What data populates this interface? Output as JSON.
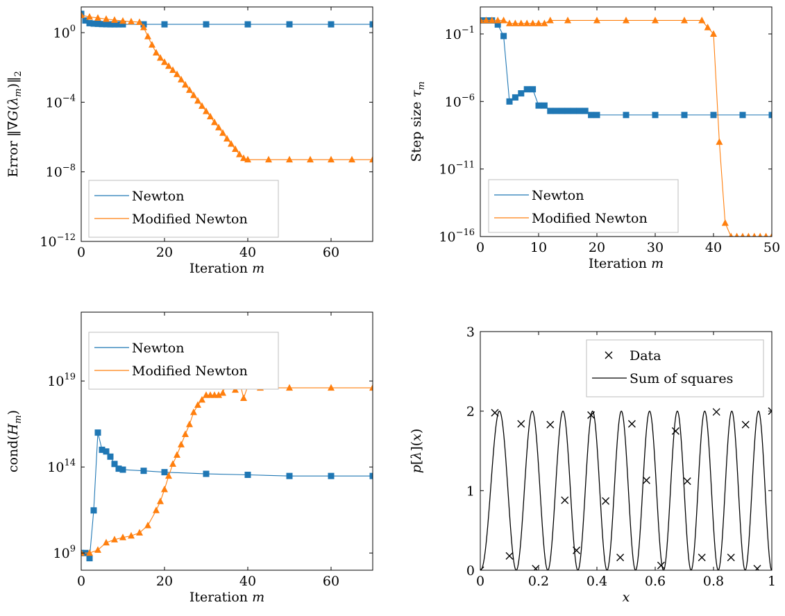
{
  "colors": {
    "newton": "#1f77b4",
    "modified_newton": "#ff7f0e",
    "sum_of_squares": "#000000",
    "data": "#000000"
  },
  "chart_data": [
    {
      "type": "line",
      "xlabel": "Iteration m",
      "ylabel": "Error ‖∇G(λm)‖2",
      "yscale": "log",
      "xlim": [
        0,
        70
      ],
      "ylim": [
        1e-12,
        30
      ],
      "xticks": [
        0,
        20,
        40,
        60
      ],
      "yticks": [
        1,
        0.0001,
        1e-08,
        1e-12
      ],
      "ytick_labels": [
        "10^0",
        "10^-4",
        "10^-8",
        "10^-12"
      ],
      "legend": "bottom-left",
      "series": [
        {
          "name": "Newton",
          "marker": "square",
          "x": [
            0,
            1,
            2,
            3,
            4,
            5,
            6,
            7,
            8,
            9,
            10,
            15,
            20,
            30,
            40,
            50,
            60,
            70
          ],
          "y": [
            12,
            5,
            3.5,
            3.3,
            3.2,
            3.1,
            3.05,
            3.0,
            3.0,
            3.0,
            3.0,
            3.0,
            3.0,
            3.0,
            3.0,
            3.0,
            3.0,
            3.0
          ]
        },
        {
          "name": "Modified Newton",
          "marker": "triangle",
          "x": [
            0,
            2,
            4,
            6,
            8,
            10,
            12,
            14,
            15,
            16,
            17,
            18,
            19,
            20,
            21,
            22,
            23,
            24,
            25,
            26,
            27,
            28,
            29,
            30,
            31,
            32,
            33,
            34,
            35,
            36,
            37,
            38,
            39,
            40,
            45,
            50,
            55,
            60,
            65,
            70
          ],
          "y": [
            10,
            8,
            7,
            6,
            5.3,
            4.7,
            4.3,
            4,
            2,
            0.6,
            0.2,
            0.07,
            0.035,
            0.02,
            0.012,
            0.007,
            0.004,
            0.002,
            0.001,
            0.0005,
            0.00025,
            0.00012,
            6e-05,
            3e-05,
            1.5e-05,
            7e-06,
            3.5e-06,
            1.7e-06,
            8e-07,
            4e-07,
            2e-07,
            1e-07,
            6e-08,
            5e-08,
            5e-08,
            5e-08,
            5e-08,
            5e-08,
            5e-08,
            5e-08
          ]
        }
      ]
    },
    {
      "type": "line",
      "xlabel": "Iteration m",
      "ylabel": "Step size τm",
      "yscale": "log",
      "xlim": [
        0,
        50
      ],
      "ylim": [
        1e-16,
        10
      ],
      "xticks": [
        0,
        10,
        20,
        30,
        40,
        50
      ],
      "yticks": [
        0.1,
        1e-06,
        1e-11,
        1e-16
      ],
      "ytick_labels": [
        "10^-1",
        "10^-6",
        "10^-11",
        "10^-16"
      ],
      "legend": "bottom-left",
      "series": [
        {
          "name": "Newton",
          "marker": "square",
          "x": [
            0,
            1,
            2,
            3,
            4,
            5,
            6,
            7,
            8,
            9,
            10,
            11,
            12,
            13,
            14,
            15,
            16,
            17,
            18,
            19,
            20,
            25,
            30,
            35,
            40,
            45,
            50
          ],
          "y": [
            1,
            1,
            1,
            0.5,
            0.07,
            1e-06,
            2e-06,
            4e-06,
            8e-06,
            8e-06,
            5e-07,
            5e-07,
            2e-07,
            2e-07,
            2e-07,
            2e-07,
            2e-07,
            2e-07,
            2e-07,
            1e-07,
            1e-07,
            1e-07,
            1e-07,
            1e-07,
            1e-07,
            1e-07,
            1e-07
          ]
        },
        {
          "name": "Modified Newton",
          "marker": "triangle",
          "x": [
            0,
            1,
            2,
            3,
            4,
            5,
            6,
            7,
            8,
            9,
            10,
            11,
            12,
            15,
            20,
            25,
            30,
            35,
            38,
            39,
            40,
            41,
            42,
            43,
            44,
            45,
            46,
            47,
            48,
            49,
            50
          ],
          "y": [
            1,
            1,
            1,
            1,
            1,
            0.6,
            0.6,
            0.6,
            0.6,
            0.6,
            0.6,
            0.6,
            1,
            1,
            1,
            1,
            1,
            1,
            1,
            0.3,
            0.1,
            1e-09,
            1e-15,
            1e-16,
            1e-16,
            1e-16,
            1e-16,
            1e-16,
            1e-16,
            1e-16,
            1e-16
          ]
        }
      ]
    },
    {
      "type": "line",
      "xlabel": "Iteration m",
      "ylabel": "cond(Hm)",
      "yscale": "log",
      "xlim": [
        0,
        70
      ],
      "ylim": [
        100000000.0,
        1e+23
      ],
      "xticks": [
        0,
        20,
        40,
        60
      ],
      "yticks": [
        1000000000.0,
        100000000000000.0,
        1e+19
      ],
      "ytick_labels": [
        "10^9",
        "10^14",
        "10^19"
      ],
      "legend": "top-left",
      "series": [
        {
          "name": "Newton",
          "marker": "square",
          "x": [
            0,
            1,
            2,
            3,
            4,
            5,
            6,
            7,
            8,
            9,
            10,
            15,
            20,
            30,
            40,
            50,
            60,
            70
          ],
          "y": [
            1000000000.0,
            1000000000.0,
            500000000.0,
            300000000000.0,
            1e+16,
            1000000000000000.0,
            800000000000000.0,
            400000000000000.0,
            150000000000000.0,
            80000000000000.0,
            70000000000000.0,
            60000000000000.0,
            50000000000000.0,
            40000000000000.0,
            35000000000000.0,
            30000000000000.0,
            30000000000000.0,
            30000000000000.0
          ]
        },
        {
          "name": "Modified Newton",
          "marker": "triangle",
          "x": [
            0,
            2,
            4,
            6,
            8,
            10,
            12,
            14,
            16,
            18,
            19,
            20,
            21,
            22,
            23,
            24,
            25,
            26,
            27,
            28,
            29,
            30,
            31,
            32,
            33,
            34,
            35,
            36,
            37,
            38,
            39,
            40,
            41,
            42,
            43,
            50,
            60,
            70
          ],
          "y": [
            1000000000.0,
            1000000000.0,
            1500000000.0,
            4000000000.0,
            6000000000.0,
            8000000000.0,
            10000000000.0,
            15000000000.0,
            40000000000.0,
            300000000000.0,
            1000000000000.0,
            5000000000000.0,
            30000000000000.0,
            150000000000000.0,
            500000000000000.0,
            2000000000000000.0,
            8000000000000000.0,
            3e+16,
            1.5e+17,
            4e+17,
            8e+17,
            1.5e+18,
            1.5e+18,
            1.5e+18,
            1.5e+18,
            2e+18,
            1e+19,
            2e+19,
            3e+18,
            1e+19,
            1e+18,
            5e+18,
            1.5e+19,
            6e+19,
            4e+18,
            4e+18,
            4e+18,
            4e+18
          ]
        }
      ]
    },
    {
      "type": "line",
      "xlabel": "x",
      "ylabel": "p[λ](x)",
      "xlim": [
        0,
        1
      ],
      "ylim": [
        0,
        3
      ],
      "xticks": [
        0,
        0.2,
        0.4,
        0.6,
        0.8,
        1
      ],
      "yticks": [
        0,
        1,
        2,
        3
      ],
      "legend": "top-right",
      "series": [
        {
          "name": "Sum of squares",
          "marker": "none",
          "formula": "1 - cos(20*pi*x^1.1)",
          "points": 1000
        },
        {
          "name": "Data",
          "marker": "x",
          "x": [
            0,
            0.05,
            0.1,
            0.14,
            0.19,
            0.24,
            0.29,
            0.33,
            0.38,
            0.43,
            0.48,
            0.52,
            0.57,
            0.62,
            0.67,
            0.71,
            0.76,
            0.81,
            0.86,
            0.91,
            0.95,
            1.0
          ],
          "y": [
            0,
            1.98,
            0.18,
            1.84,
            0.02,
            1.83,
            0.88,
            0.25,
            1.95,
            0.87,
            0.16,
            1.84,
            1.13,
            0.06,
            1.75,
            1.12,
            0.16,
            1.99,
            0.16,
            1.83,
            0.02,
            2.0
          ]
        }
      ]
    }
  ]
}
